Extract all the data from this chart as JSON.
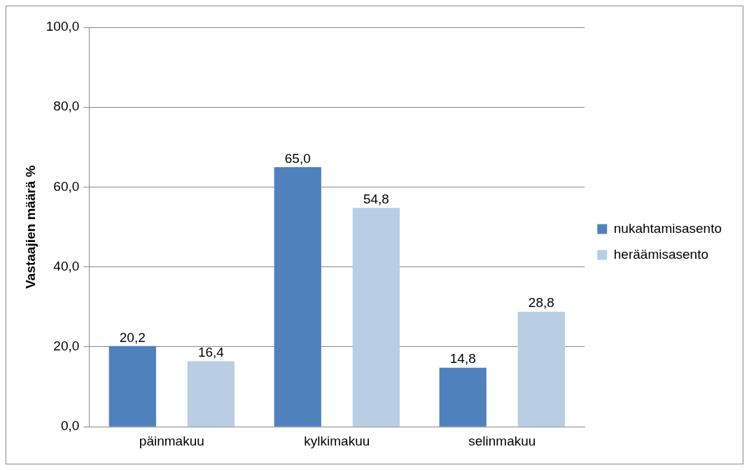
{
  "chart_data": {
    "type": "bar",
    "ylabel": "Vastaajien määrä %",
    "categories": [
      "päinmakuu",
      "kylkimakuu",
      "selinmakuu"
    ],
    "series": [
      {
        "name": "nukahtamisasento",
        "color": "#4f81bd",
        "values": [
          20.2,
          65.0,
          14.8
        ],
        "value_labels": [
          "20,2",
          "65,0",
          "14,8"
        ]
      },
      {
        "name": "heräämisasento",
        "color": "#b9cde5",
        "values": [
          16.4,
          54.8,
          28.8
        ],
        "value_labels": [
          "16,4",
          "54,8",
          "28,8"
        ]
      }
    ],
    "ylim": [
      0,
      100
    ],
    "yticks": [
      {
        "value": 0,
        "label": "0,0"
      },
      {
        "value": 20,
        "label": "20,0"
      },
      {
        "value": 40,
        "label": "40,0"
      },
      {
        "value": 60,
        "label": "60,0"
      },
      {
        "value": 80,
        "label": "80,0"
      },
      {
        "value": 100,
        "label": "100,0"
      }
    ],
    "grid": "y",
    "legend": "right"
  }
}
